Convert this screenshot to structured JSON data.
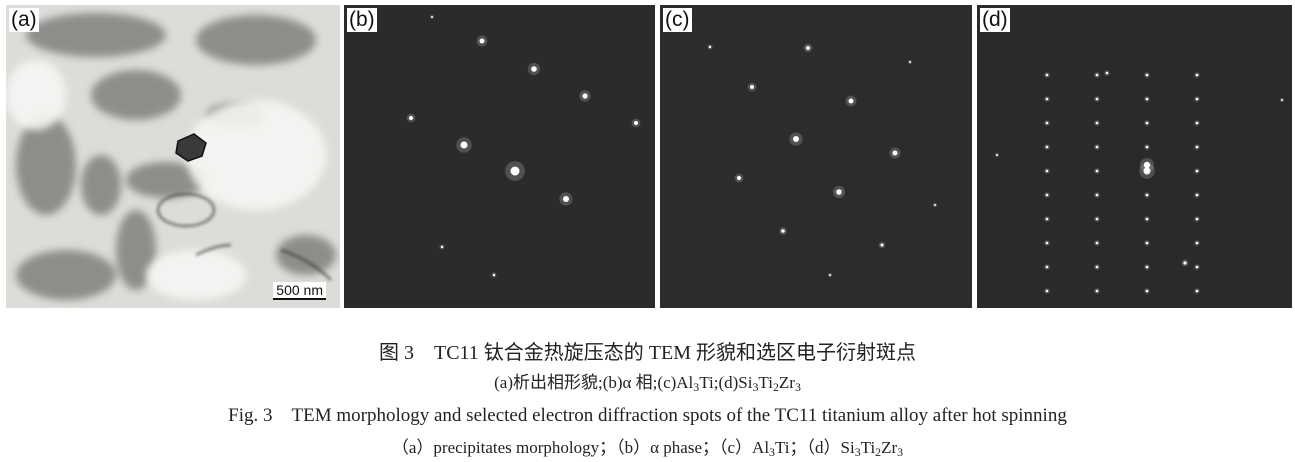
{
  "figure": {
    "panels": [
      {
        "label": "(a)",
        "scale_bar": "500 nm"
      },
      {
        "label": "(b)"
      },
      {
        "label": "(c)"
      },
      {
        "label": "(d)"
      }
    ],
    "caption_cn": {
      "title": "图 3　TC11 钛合金热旋压态的 TEM 形貌和选区电子衍射斑点",
      "sub_a": "(a)析出相形貌;",
      "sub_b": "(b)α 相;",
      "sub_c_pre": "(c)Al",
      "sub_c_1": "3",
      "sub_c_post": "Ti;",
      "sub_d_pre": "(d)Si",
      "sub_d_1": "3",
      "sub_d_mid1": "Ti",
      "sub_d_2": "2",
      "sub_d_mid2": "Zr",
      "sub_d_3": "3"
    },
    "caption_en": {
      "title": "Fig. 3　TEM morphology and selected electron diffraction spots of the TC11 titanium alloy after hot spinning",
      "sub_a": "（a）precipitates morphology；",
      "sub_b": "（b）α phase；",
      "sub_c_pre": "（c）Al",
      "sub_c_1": "3",
      "sub_c_post": "Ti；",
      "sub_d_pre": "（d）Si",
      "sub_d_1": "3",
      "sub_d_mid1": "Ti",
      "sub_d_2": "2",
      "sub_d_mid2": "Zr",
      "sub_d_3": "3"
    }
  }
}
